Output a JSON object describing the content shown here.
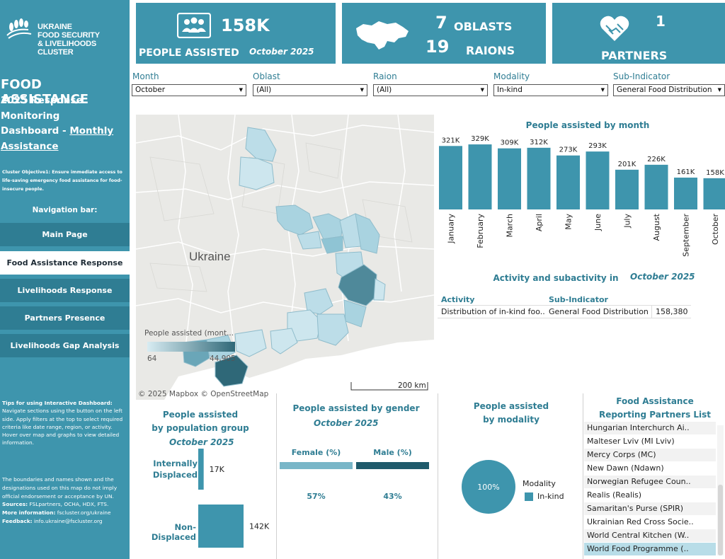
{
  "sidebar": {
    "logo_lines": [
      "UKRAINE",
      "FOOD SECURITY",
      "& LIVELIHOODS CLUSTER"
    ],
    "title": "FOOD ASSISTANCE",
    "subtitle_line1": "2025 Response Monitoring",
    "subtitle_line2a": "Dashboard - ",
    "subtitle_line2b": "Monthly ",
    "subtitle_line3": "Assistance",
    "objective": "Cluster Objective1:  Ensure immediate access to life-saving emergency food assistance for food-insecure people.",
    "nav_label": "Navigation bar:",
    "nav": [
      {
        "label": "Main Page"
      },
      {
        "label": "Food Assistance Response"
      },
      {
        "label": "Livelihoods Response"
      },
      {
        "label": "Partners Presence"
      },
      {
        "label": "Livelihoods Gap Analysis"
      }
    ],
    "tips_title": "Tips for using Interactive Dashboard:",
    "tips_text": "Navigate sections using the button on the left side. Apply filters at the top to select required criteria like date range, region, or activity. Hover over map and graphs to view detailed information.",
    "disclaimer": "The boundaries and names shown and the designations used on this map do not imply official endorsement or acceptance by UN.",
    "sources_label": "Sources:",
    "sources": " FSLpartners, OCHA, HDX, FTS.",
    "more_label": "More information:",
    "more": " fscluster.org/ukraine",
    "feedback_label": "Feedback:",
    "feedback": " info.ukraine@fscluster.org"
  },
  "kpi": {
    "people_value": "158K",
    "people_label": "PEOPLE ASSISTED",
    "people_month": "October 2025",
    "oblasts_value": "7",
    "oblasts_label": "OBLASTS",
    "raions_value": "19",
    "raions_label": "RAIONS",
    "partners_value": "1",
    "partners_label": "PARTNERS"
  },
  "filters": {
    "month": {
      "label": "Month",
      "value": "October"
    },
    "oblast": {
      "label": "Oblast",
      "value": "(All)"
    },
    "raion": {
      "label": "Raion",
      "value": "(All)"
    },
    "modality": {
      "label": "Modality",
      "value": "In-kind"
    },
    "subindicator": {
      "label": "Sub-Indicator",
      "value": "General Food Distribution"
    }
  },
  "map": {
    "country_label": "Ukraine",
    "legend_title": "People assisted (mont...",
    "legend_min": "64",
    "legend_max": "44,905",
    "attribution": "© 2025 Mapbox  © OpenStreetMap",
    "scale_label": "200 km"
  },
  "bar_chart": {
    "title": "People assisted by month"
  },
  "chart_data": [
    {
      "type": "bar",
      "title": "People assisted by month",
      "categories": [
        "January",
        "February",
        "March",
        "April",
        "May",
        "June",
        "July",
        "August",
        "September",
        "October"
      ],
      "values": [
        321,
        329,
        309,
        312,
        273,
        293,
        201,
        226,
        161,
        158
      ],
      "value_labels": [
        "321K",
        "329K",
        "309K",
        "312K",
        "273K",
        "293K",
        "201K",
        "226K",
        "161K",
        "158K"
      ],
      "ylim": [
        0,
        340
      ]
    },
    {
      "type": "bar",
      "title": "People assisted by population group",
      "categories": [
        "Internally Displaced",
        "Non-Displaced"
      ],
      "values": [
        17,
        142
      ],
      "value_labels": [
        "17K",
        "142K"
      ],
      "ylim": [
        0,
        142
      ]
    },
    {
      "type": "bar",
      "title": "People assisted by gender",
      "categories": [
        "Female (%)",
        "Male (%)"
      ],
      "values": [
        57,
        43
      ],
      "value_labels": [
        "57%",
        "43%"
      ]
    },
    {
      "type": "pie",
      "title": "People assisted by modality",
      "categories": [
        "In-kind"
      ],
      "values": [
        100
      ],
      "value_labels": [
        "100%"
      ]
    }
  ],
  "activity_table": {
    "title": "Activity and subactivity in",
    "month": "October 2025",
    "headers": [
      "Activity",
      "Sub-Indicator"
    ],
    "row": [
      "Distribution of in-kind foo..",
      "General Food Distribution",
      "158,380"
    ]
  },
  "population": {
    "title_line1": "People assisted",
    "title_line2": "by population group",
    "month": "October 2025",
    "cat1_line1": "Internally",
    "cat1_line2": "Displaced",
    "cat2": "Non-Displaced"
  },
  "gender": {
    "title": "People assisted by gender",
    "month": "October 2025",
    "colors": {
      "female": "#79b6c8",
      "male": "#1f5a6b"
    }
  },
  "modality": {
    "title_line1": "People assisted",
    "title_line2": "by modality",
    "legend_title": "Modality",
    "legend_item": "In-kind",
    "color": "#3e95ad"
  },
  "partners": {
    "title_line1": "Food Assistance",
    "title_line2": "Reporting Partners List",
    "items": [
      "Hungarian Interchurch Ai..",
      "Malteser Lviv (MI Lviv)",
      "Mercy Corps (MC)",
      "New Dawn (Ndawn)",
      "Norwegian Refugee Coun..",
      "Realis (Realis)",
      "Samaritan's Purse (SPIR)",
      "Ukrainian Red Cross Socie..",
      "World Central Kitchen (W..",
      "World Food Programme (.."
    ]
  },
  "colors": {
    "accent": "#3e95ad",
    "accent_dark": "#2f7d93",
    "title_text": "#2f7d93"
  }
}
